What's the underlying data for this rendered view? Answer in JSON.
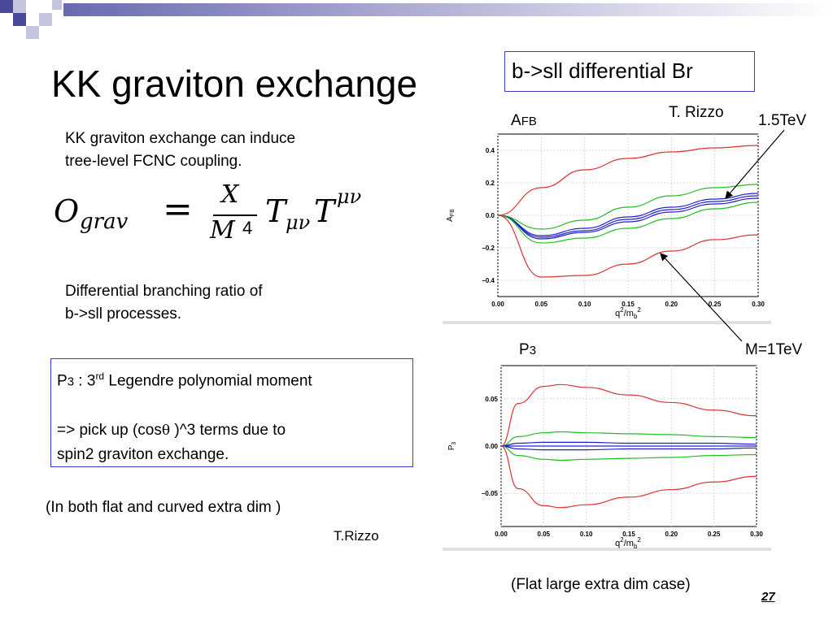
{
  "title": "KK graviton exchange",
  "intro_text": [
    "KK graviton exchange can induce",
    "tree-level FCNC coupling."
  ],
  "equation": {
    "lhs_symbol": "O",
    "lhs_subscript": "grav",
    "equals": "=",
    "numerator": "X",
    "denominator": "M",
    "denominator_power": "4",
    "tensor1": "T",
    "tensor1_sub": "μν",
    "tensor2": "T",
    "tensor2_sup": "μν"
  },
  "diff_text": [
    "Differential branching ratio of",
    "b->sll processes."
  ],
  "box_diff_label": "b->sll differential Br",
  "p3_box": {
    "line1_p": "P",
    "line1_sub": "3",
    "line1_colon": " : 3",
    "line1_sup": "rd",
    "line1_rest": " Legendre polynomial moment",
    "line2": "=> pick up (cos",
    "theta": "θ",
    "line2_end": " )^3 terms due to",
    "line3": "spin2 graviton exchange."
  },
  "flat_curved_note": "(In both flat and curved extra dim )",
  "credit_bottom": "T.Rizzo",
  "credit_top": "T. Rizzo",
  "afb_label": {
    "main": "A",
    "sub": "FB"
  },
  "p3_label": {
    "main": "P",
    "sub": "3"
  },
  "tev15_label": "1.5TeV",
  "m1tev_label": "M=1TeV",
  "flat_case_note": "(Flat large extra dim case)",
  "slide_number": "27",
  "colors": {
    "box_border": "#3a3ad0",
    "deco_dark": "#4a4a9a",
    "deco_light": "#c4c4dc",
    "curve_red": "#e03030",
    "curve_green": "#20c020",
    "curve_blue": "#2020d0"
  },
  "chart_data": [
    {
      "type": "line",
      "ylabel": "A_FB",
      "xlabel": "q^2/m_b^2",
      "xlim": [
        0.0,
        0.3
      ],
      "ylim": [
        -0.5,
        0.5
      ],
      "xticks": [
        "0.00",
        "0.05",
        "0.10",
        "0.15",
        "0.20",
        "0.25",
        "0.30"
      ],
      "yticks": [
        "0.4",
        "0.2",
        "0.0",
        "−0.2",
        "−0.4"
      ],
      "x": [
        0.0,
        0.05,
        0.1,
        0.15,
        0.2,
        0.25,
        0.3
      ],
      "series": [
        {
          "color": "red",
          "values": [
            0.0,
            0.17,
            0.28,
            0.35,
            0.39,
            0.415,
            0.43
          ]
        },
        {
          "color": "green",
          "values": [
            0.0,
            -0.085,
            -0.03,
            0.05,
            0.12,
            0.17,
            0.19
          ]
        },
        {
          "color": "blue",
          "values": [
            0.0,
            -0.125,
            -0.08,
            -0.01,
            0.05,
            0.1,
            0.135
          ]
        },
        {
          "color": "blue",
          "values": [
            0.0,
            -0.135,
            -0.095,
            -0.025,
            0.035,
            0.085,
            0.12
          ]
        },
        {
          "color": "blue",
          "values": [
            0.0,
            -0.145,
            -0.105,
            -0.04,
            0.02,
            0.07,
            0.105
          ]
        },
        {
          "color": "green",
          "values": [
            0.0,
            -0.17,
            -0.14,
            -0.08,
            -0.02,
            0.04,
            0.08
          ]
        },
        {
          "color": "red",
          "values": [
            0.0,
            -0.38,
            -0.37,
            -0.3,
            -0.22,
            -0.15,
            -0.12
          ]
        }
      ]
    },
    {
      "type": "line",
      "ylabel": "P_3",
      "xlabel": "q^2/m_b^2",
      "xlim": [
        0.0,
        0.3
      ],
      "ylim": [
        -0.085,
        0.085
      ],
      "xticks": [
        "0.00",
        "0.05",
        "0.10",
        "0.15",
        "0.20",
        "0.25",
        "0.30"
      ],
      "yticks": [
        "0.05",
        "0.00",
        "−0.05"
      ],
      "x": [
        0.0,
        0.02,
        0.05,
        0.07,
        0.1,
        0.15,
        0.2,
        0.25,
        0.3
      ],
      "series": [
        {
          "color": "red",
          "values": [
            0.0,
            0.045,
            0.063,
            0.065,
            0.062,
            0.054,
            0.046,
            0.038,
            0.032
          ]
        },
        {
          "color": "green",
          "values": [
            0.0,
            0.01,
            0.014,
            0.015,
            0.014,
            0.013,
            0.012,
            0.01,
            0.009
          ]
        },
        {
          "color": "blue",
          "values": [
            0.0,
            0.003,
            0.004,
            0.004,
            0.004,
            0.003,
            0.003,
            0.003,
            0.002
          ]
        },
        {
          "color": "blue",
          "values": [
            0.0,
            0.0,
            0.0,
            0.0,
            0.0,
            0.0,
            0.0,
            0.0,
            0.0
          ]
        },
        {
          "color": "blue",
          "values": [
            0.0,
            -0.003,
            -0.004,
            -0.004,
            -0.004,
            -0.003,
            -0.003,
            -0.003,
            -0.002
          ]
        },
        {
          "color": "green",
          "values": [
            0.0,
            -0.01,
            -0.014,
            -0.015,
            -0.014,
            -0.013,
            -0.012,
            -0.01,
            -0.009
          ]
        },
        {
          "color": "red",
          "values": [
            0.0,
            -0.045,
            -0.063,
            -0.065,
            -0.062,
            -0.054,
            -0.046,
            -0.038,
            -0.032
          ]
        }
      ]
    }
  ]
}
